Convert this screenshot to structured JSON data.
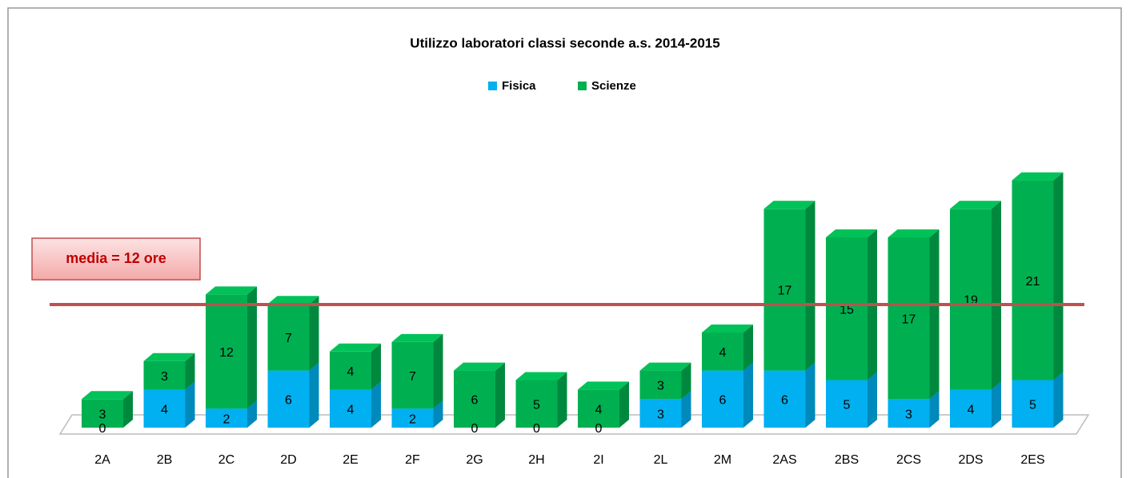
{
  "chart_data": {
    "type": "bar3d_stacked",
    "title": "Utilizzo laboratori classi seconde a.s. 2014-2015",
    "categories": [
      "2A",
      "2B",
      "2C",
      "2D",
      "2E",
      "2F",
      "2G",
      "2H",
      "2I",
      "2L",
      "2M",
      "2AS",
      "2BS",
      "2CS",
      "2DS",
      "2ES"
    ],
    "series": [
      {
        "name": "Fisica",
        "color": "#00b0f0",
        "values": [
          0,
          4,
          2,
          6,
          4,
          2,
          0,
          0,
          0,
          3,
          6,
          6,
          5,
          3,
          4,
          5
        ]
      },
      {
        "name": "Scienze",
        "color": "#00b050",
        "values": [
          3,
          3,
          12,
          7,
          4,
          7,
          6,
          5,
          4,
          3,
          4,
          17,
          15,
          17,
          19,
          21
        ]
      }
    ],
    "annotation": "media = 12 ore",
    "legend": "top"
  }
}
